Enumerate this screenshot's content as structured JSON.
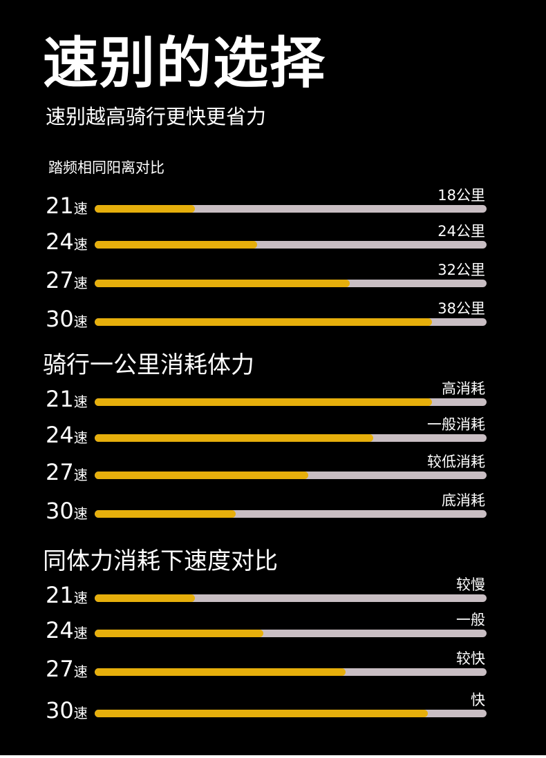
{
  "title": "速别的选择",
  "subtitle": "速别越高骑行更快更省力",
  "sections": [
    {
      "heading": "踏频相同阳离对比",
      "rows": [
        {
          "speed": "21",
          "unit": "速",
          "label": "18公里",
          "fill_fraction": 0.255
        },
        {
          "speed": "24",
          "unit": "速",
          "label": "24公里",
          "fill_fraction": 0.415
        },
        {
          "speed": "27",
          "unit": "速",
          "label": "32公里",
          "fill_fraction": 0.65
        },
        {
          "speed": "30",
          "unit": "速",
          "label": "38公里",
          "fill_fraction": 0.86
        }
      ]
    },
    {
      "heading": "骑行一公里消耗体力",
      "rows": [
        {
          "speed": "21",
          "unit": "速",
          "label": "高消耗",
          "fill_fraction": 0.86
        },
        {
          "speed": "24",
          "unit": "速",
          "label": "一般消耗",
          "fill_fraction": 0.71
        },
        {
          "speed": "27",
          "unit": "速",
          "label": "较低消耗",
          "fill_fraction": 0.545
        },
        {
          "speed": "30",
          "unit": "速",
          "label": "底消耗",
          "fill_fraction": 0.36
        }
      ]
    },
    {
      "heading": "同体力消耗下速度对比",
      "rows": [
        {
          "speed": "21",
          "unit": "速",
          "label": "较慢",
          "fill_fraction": 0.255
        },
        {
          "speed": "24",
          "unit": "速",
          "label": "一般",
          "fill_fraction": 0.43
        },
        {
          "speed": "27",
          "unit": "速",
          "label": "较快",
          "fill_fraction": 0.64
        },
        {
          "speed": "30",
          "unit": "速",
          "label": "快",
          "fill_fraction": 0.85
        }
      ]
    }
  ],
  "colors": {
    "background": "#000000",
    "bar_fill": "#e6af0c",
    "bar_track": "#c9bec3",
    "text": "#ffffff"
  }
}
